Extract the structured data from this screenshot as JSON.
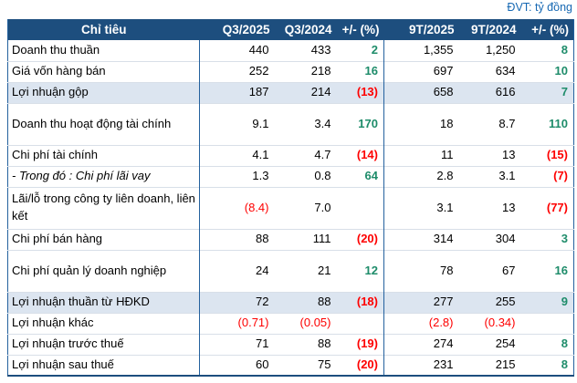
{
  "meta": {
    "unit_label": "ĐVT: tỷ đồng"
  },
  "colors": {
    "header_bg": "#1D4E7E",
    "highlight_row_bg": "#DCE5F0",
    "positive": "#1E8C6A",
    "negative": "#FE0000",
    "unit_label_blue": "#1668B3",
    "grid_line": "#D8DFE8",
    "column_separator": "#24619E"
  },
  "table": {
    "headers": [
      "Chỉ tiêu",
      "Q3/2025",
      "Q3/2024",
      "+/- (%)",
      "9T/2025",
      "9T/2024",
      "+/- (%)"
    ],
    "rows": [
      {
        "label": "Doanh thu thuần",
        "cells": [
          {
            "v": "440"
          },
          {
            "v": "433"
          },
          {
            "v": "2",
            "s": "G"
          },
          {
            "v": "1,355"
          },
          {
            "v": "1,250"
          },
          {
            "v": "8",
            "s": "G"
          }
        ]
      },
      {
        "label": "Giá vốn hàng bán",
        "cells": [
          {
            "v": "252"
          },
          {
            "v": "218"
          },
          {
            "v": "16",
            "s": "G"
          },
          {
            "v": "697"
          },
          {
            "v": "634"
          },
          {
            "v": "10",
            "s": "G"
          }
        ]
      },
      {
        "label": "Lợi nhuận gộp",
        "hl": true,
        "cells": [
          {
            "v": "187"
          },
          {
            "v": "214"
          },
          {
            "v": "(13)",
            "s": "R"
          },
          {
            "v": "658"
          },
          {
            "v": "616"
          },
          {
            "v": "7",
            "s": "G"
          }
        ]
      },
      {
        "label": "Doanh thu hoạt động tài chính",
        "h2": true,
        "cells": [
          {
            "v": "9.1"
          },
          {
            "v": "3.4"
          },
          {
            "v": "170",
            "s": "G"
          },
          {
            "v": "18"
          },
          {
            "v": "8.7"
          },
          {
            "v": "110",
            "s": "G"
          }
        ]
      },
      {
        "label": "Chi phí tài chính",
        "cells": [
          {
            "v": "4.1"
          },
          {
            "v": "4.7"
          },
          {
            "v": "(14)",
            "s": "R"
          },
          {
            "v": "11"
          },
          {
            "v": "13"
          },
          {
            "v": "(15)",
            "s": "R"
          }
        ]
      },
      {
        "label": "- Trong đó : Chi phí lãi vay",
        "it": true,
        "cells": [
          {
            "v": "1.3"
          },
          {
            "v": "0.8"
          },
          {
            "v": "64",
            "s": "G"
          },
          {
            "v": "2.8"
          },
          {
            "v": "3.1"
          },
          {
            "v": "(7)",
            "s": "R"
          }
        ]
      },
      {
        "label": "Lãi/lỗ trong công ty liên doanh, liên kết",
        "h2": true,
        "cells": [
          {
            "v": "(8.4)",
            "s": "r"
          },
          {
            "v": "7.0"
          },
          {
            "v": ""
          },
          {
            "v": "3.1"
          },
          {
            "v": "13"
          },
          {
            "v": "(77)",
            "s": "R"
          }
        ]
      },
      {
        "label": "Chi phí bán hàng",
        "cells": [
          {
            "v": "88"
          },
          {
            "v": "111"
          },
          {
            "v": "(20)",
            "s": "R"
          },
          {
            "v": "314"
          },
          {
            "v": "304"
          },
          {
            "v": "3",
            "s": "G"
          }
        ]
      },
      {
        "label": "Chi phí quản lý doanh nghiệp",
        "h2": true,
        "cells": [
          {
            "v": "24"
          },
          {
            "v": "21"
          },
          {
            "v": "12",
            "s": "G"
          },
          {
            "v": "78"
          },
          {
            "v": "67"
          },
          {
            "v": "16",
            "s": "G"
          }
        ]
      },
      {
        "label": "Lợi nhuận thuần từ HĐKD",
        "hl": true,
        "cells": [
          {
            "v": "72"
          },
          {
            "v": "88"
          },
          {
            "v": "(18)",
            "s": "R"
          },
          {
            "v": "277"
          },
          {
            "v": "255"
          },
          {
            "v": "9",
            "s": "G"
          }
        ]
      },
      {
        "label": "Lợi nhuận khác",
        "cells": [
          {
            "v": "(0.71)",
            "s": "r"
          },
          {
            "v": "(0.05)",
            "s": "r"
          },
          {
            "v": ""
          },
          {
            "v": "(2.8)",
            "s": "r"
          },
          {
            "v": "(0.34)",
            "s": "r"
          },
          {
            "v": ""
          }
        ]
      },
      {
        "label": "Lợi nhuận trước thuế",
        "cells": [
          {
            "v": "71"
          },
          {
            "v": "88"
          },
          {
            "v": "(19)",
            "s": "R"
          },
          {
            "v": "274"
          },
          {
            "v": "254"
          },
          {
            "v": "8",
            "s": "G"
          }
        ]
      },
      {
        "label": "Lợi nhuận sau thuế",
        "cells": [
          {
            "v": "60"
          },
          {
            "v": "75"
          },
          {
            "v": "(20)",
            "s": "R"
          },
          {
            "v": "231"
          },
          {
            "v": "215"
          },
          {
            "v": "8",
            "s": "G"
          }
        ]
      }
    ]
  }
}
